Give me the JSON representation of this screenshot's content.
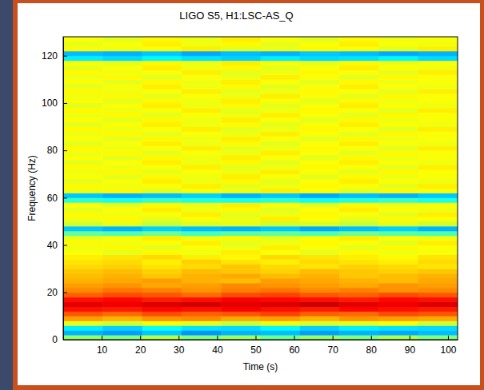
{
  "chart_data": {
    "type": "heatmap",
    "title": "LIGO S5, H1:LSC-AS_Q",
    "x_label": "Time (s)",
    "y_label": "Frequency (Hz)",
    "xlim": [
      0,
      102.5
    ],
    "ylim": [
      0,
      128
    ],
    "xticks": [
      10,
      20,
      30,
      40,
      50,
      60,
      70,
      80,
      90,
      100
    ],
    "yticks": [
      0,
      20,
      40,
      60,
      80,
      100,
      120
    ],
    "grid": false,
    "clim": [
      0,
      1
    ],
    "x_bins": [
      0,
      10.25,
      20.5,
      30.75,
      41,
      51.25,
      61.5,
      71.75,
      82,
      92.25,
      102.5
    ],
    "y_bins": [
      0,
      2,
      4,
      6,
      8,
      10,
      12,
      14,
      16,
      18,
      20,
      22,
      24,
      26,
      28,
      30,
      32,
      34,
      36,
      38,
      40,
      42,
      44,
      46,
      48,
      50,
      52,
      54,
      56,
      58,
      60,
      62,
      64,
      66,
      68,
      70,
      72,
      74,
      76,
      78,
      80,
      82,
      84,
      86,
      88,
      90,
      92,
      94,
      96,
      98,
      100,
      102,
      104,
      106,
      108,
      110,
      112,
      114,
      116,
      118,
      120,
      122,
      124,
      126,
      128
    ],
    "cells": [
      [
        0.52,
        0.5,
        0.55,
        0.5,
        0.53,
        0.48,
        0.52,
        0.5,
        0.54,
        0.5
      ],
      [
        0.3,
        0.28,
        0.32,
        0.27,
        0.3,
        0.31,
        0.28,
        0.3,
        0.29,
        0.31
      ],
      [
        0.36,
        0.33,
        0.38,
        0.35,
        0.34,
        0.37,
        0.33,
        0.36,
        0.35,
        0.34
      ],
      [
        0.6,
        0.58,
        0.62,
        0.6,
        0.57,
        0.61,
        0.59,
        0.6,
        0.62,
        0.58
      ],
      [
        0.72,
        0.7,
        0.73,
        0.74,
        0.71,
        0.72,
        0.7,
        0.73,
        0.72,
        0.71
      ],
      [
        0.79,
        0.77,
        0.8,
        0.78,
        0.79,
        0.81,
        0.78,
        0.77,
        0.8,
        0.79
      ],
      [
        0.86,
        0.85,
        0.87,
        0.86,
        0.88,
        0.86,
        0.85,
        0.87,
        0.86,
        0.85
      ],
      [
        0.9,
        0.89,
        0.91,
        0.92,
        0.9,
        0.91,
        0.93,
        0.9,
        0.89,
        0.91
      ],
      [
        0.86,
        0.87,
        0.85,
        0.86,
        0.88,
        0.87,
        0.86,
        0.85,
        0.87,
        0.86
      ],
      [
        0.78,
        0.8,
        0.79,
        0.77,
        0.8,
        0.81,
        0.79,
        0.78,
        0.8,
        0.79
      ],
      [
        0.74,
        0.76,
        0.75,
        0.73,
        0.75,
        0.76,
        0.74,
        0.75,
        0.73,
        0.74
      ],
      [
        0.72,
        0.73,
        0.71,
        0.72,
        0.74,
        0.73,
        0.72,
        0.71,
        0.73,
        0.72
      ],
      [
        0.7,
        0.71,
        0.72,
        0.7,
        0.69,
        0.72,
        0.71,
        0.7,
        0.69,
        0.71
      ],
      [
        0.69,
        0.7,
        0.68,
        0.7,
        0.71,
        0.69,
        0.7,
        0.68,
        0.69,
        0.7
      ],
      [
        0.68,
        0.69,
        0.67,
        0.69,
        0.68,
        0.67,
        0.69,
        0.68,
        0.67,
        0.68
      ],
      [
        0.66,
        0.67,
        0.65,
        0.66,
        0.68,
        0.66,
        0.65,
        0.67,
        0.66,
        0.65
      ],
      [
        0.65,
        0.66,
        0.64,
        0.67,
        0.65,
        0.64,
        0.66,
        0.65,
        0.64,
        0.66
      ],
      [
        0.64,
        0.65,
        0.66,
        0.64,
        0.63,
        0.66,
        0.65,
        0.64,
        0.63,
        0.65
      ],
      [
        0.62,
        0.6,
        0.63,
        0.61,
        0.64,
        0.62,
        0.6,
        0.63,
        0.61,
        0.62
      ],
      [
        0.61,
        0.63,
        0.6,
        0.62,
        0.61,
        0.64,
        0.62,
        0.6,
        0.63,
        0.62
      ],
      [
        0.63,
        0.61,
        0.62,
        0.64,
        0.6,
        0.61,
        0.63,
        0.62,
        0.6,
        0.64
      ],
      [
        0.6,
        0.62,
        0.64,
        0.61,
        0.63,
        0.6,
        0.62,
        0.64,
        0.62,
        0.61
      ],
      [
        0.47,
        0.45,
        0.48,
        0.44,
        0.46,
        0.47,
        0.45,
        0.48,
        0.46,
        0.45
      ],
      [
        0.32,
        0.3,
        0.33,
        0.31,
        0.3,
        0.32,
        0.29,
        0.31,
        0.33,
        0.3
      ],
      [
        0.58,
        0.6,
        0.57,
        0.59,
        0.6,
        0.58,
        0.59,
        0.57,
        0.6,
        0.58
      ],
      [
        0.61,
        0.63,
        0.6,
        0.62,
        0.61,
        0.64,
        0.62,
        0.6,
        0.63,
        0.62
      ],
      [
        0.63,
        0.61,
        0.62,
        0.64,
        0.6,
        0.61,
        0.63,
        0.62,
        0.6,
        0.64
      ],
      [
        0.6,
        0.62,
        0.64,
        0.61,
        0.63,
        0.6,
        0.62,
        0.64,
        0.62,
        0.61
      ],
      [
        0.62,
        0.6,
        0.63,
        0.61,
        0.64,
        0.62,
        0.6,
        0.63,
        0.61,
        0.62
      ],
      [
        0.42,
        0.4,
        0.43,
        0.41,
        0.4,
        0.42,
        0.39,
        0.41,
        0.43,
        0.4
      ],
      [
        0.32,
        0.3,
        0.31,
        0.33,
        0.3,
        0.32,
        0.29,
        0.31,
        0.3,
        0.32
      ],
      [
        0.61,
        0.63,
        0.6,
        0.62,
        0.61,
        0.64,
        0.62,
        0.6,
        0.63,
        0.62
      ],
      [
        0.63,
        0.61,
        0.62,
        0.64,
        0.6,
        0.61,
        0.63,
        0.62,
        0.6,
        0.64
      ],
      [
        0.6,
        0.62,
        0.64,
        0.61,
        0.63,
        0.6,
        0.62,
        0.64,
        0.62,
        0.61
      ],
      [
        0.62,
        0.6,
        0.63,
        0.61,
        0.64,
        0.62,
        0.6,
        0.63,
        0.61,
        0.62
      ],
      [
        0.61,
        0.63,
        0.6,
        0.62,
        0.61,
        0.64,
        0.62,
        0.6,
        0.63,
        0.62
      ],
      [
        0.63,
        0.61,
        0.62,
        0.64,
        0.6,
        0.61,
        0.63,
        0.62,
        0.6,
        0.64
      ],
      [
        0.6,
        0.62,
        0.64,
        0.61,
        0.63,
        0.6,
        0.62,
        0.64,
        0.62,
        0.61
      ],
      [
        0.62,
        0.6,
        0.63,
        0.61,
        0.64,
        0.62,
        0.6,
        0.63,
        0.61,
        0.62
      ],
      [
        0.61,
        0.63,
        0.6,
        0.62,
        0.61,
        0.64,
        0.62,
        0.6,
        0.63,
        0.62
      ],
      [
        0.63,
        0.61,
        0.62,
        0.64,
        0.6,
        0.61,
        0.63,
        0.62,
        0.6,
        0.64
      ],
      [
        0.6,
        0.62,
        0.64,
        0.61,
        0.63,
        0.6,
        0.62,
        0.64,
        0.62,
        0.61
      ],
      [
        0.62,
        0.6,
        0.63,
        0.61,
        0.64,
        0.62,
        0.6,
        0.63,
        0.61,
        0.62
      ],
      [
        0.61,
        0.63,
        0.6,
        0.62,
        0.61,
        0.64,
        0.62,
        0.6,
        0.63,
        0.62
      ],
      [
        0.63,
        0.61,
        0.62,
        0.64,
        0.6,
        0.61,
        0.63,
        0.62,
        0.6,
        0.64
      ],
      [
        0.6,
        0.62,
        0.64,
        0.61,
        0.63,
        0.6,
        0.62,
        0.64,
        0.62,
        0.61
      ],
      [
        0.62,
        0.6,
        0.63,
        0.61,
        0.64,
        0.62,
        0.6,
        0.63,
        0.61,
        0.62
      ],
      [
        0.61,
        0.63,
        0.6,
        0.62,
        0.61,
        0.64,
        0.62,
        0.6,
        0.63,
        0.62
      ],
      [
        0.63,
        0.61,
        0.62,
        0.64,
        0.6,
        0.61,
        0.63,
        0.62,
        0.6,
        0.64
      ],
      [
        0.6,
        0.62,
        0.64,
        0.61,
        0.63,
        0.6,
        0.62,
        0.64,
        0.62,
        0.61
      ],
      [
        0.62,
        0.6,
        0.63,
        0.61,
        0.64,
        0.62,
        0.6,
        0.63,
        0.61,
        0.62
      ],
      [
        0.61,
        0.63,
        0.6,
        0.62,
        0.61,
        0.64,
        0.62,
        0.6,
        0.63,
        0.62
      ],
      [
        0.63,
        0.61,
        0.62,
        0.64,
        0.6,
        0.61,
        0.63,
        0.62,
        0.6,
        0.64
      ],
      [
        0.6,
        0.62,
        0.64,
        0.61,
        0.63,
        0.6,
        0.62,
        0.64,
        0.62,
        0.61
      ],
      [
        0.62,
        0.6,
        0.63,
        0.61,
        0.64,
        0.62,
        0.6,
        0.63,
        0.61,
        0.62
      ],
      [
        0.61,
        0.63,
        0.6,
        0.62,
        0.61,
        0.64,
        0.62,
        0.6,
        0.63,
        0.62
      ],
      [
        0.63,
        0.61,
        0.62,
        0.64,
        0.6,
        0.61,
        0.63,
        0.62,
        0.6,
        0.64
      ],
      [
        0.6,
        0.62,
        0.64,
        0.61,
        0.63,
        0.6,
        0.62,
        0.64,
        0.62,
        0.61
      ],
      [
        0.62,
        0.6,
        0.63,
        0.61,
        0.64,
        0.62,
        0.6,
        0.63,
        0.61,
        0.62
      ],
      [
        0.36,
        0.34,
        0.37,
        0.35,
        0.33,
        0.36,
        0.34,
        0.35,
        0.37,
        0.34
      ],
      [
        0.31,
        0.3,
        0.32,
        0.29,
        0.31,
        0.3,
        0.32,
        0.31,
        0.29,
        0.3
      ],
      [
        0.63,
        0.61,
        0.62,
        0.64,
        0.6,
        0.61,
        0.63,
        0.62,
        0.6,
        0.64
      ],
      [
        0.6,
        0.62,
        0.64,
        0.61,
        0.63,
        0.6,
        0.62,
        0.64,
        0.62,
        0.61
      ],
      [
        0.62,
        0.6,
        0.63,
        0.61,
        0.64,
        0.62,
        0.6,
        0.63,
        0.61,
        0.62
      ]
    ]
  }
}
